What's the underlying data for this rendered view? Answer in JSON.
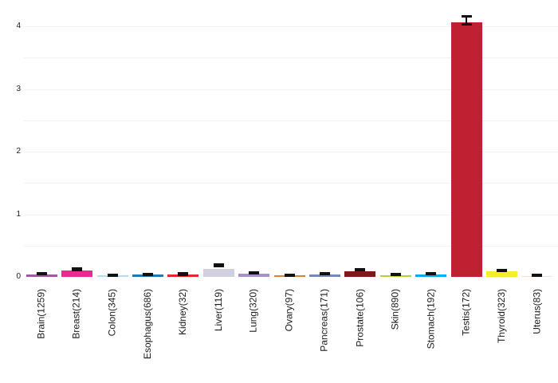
{
  "chart_data": {
    "type": "bar",
    "title": "",
    "xlabel": "",
    "ylabel": "",
    "categories": [
      "Brain(1259)",
      "Breast(214)",
      "Colon(345)",
      "Esophagus(686)",
      "Kidney(32)",
      "Liver(119)",
      "Lung(320)",
      "Ovary(97)",
      "Pancreas(171)",
      "Prostate(106)",
      "Skin(890)",
      "Stomach(192)",
      "Testis(172)",
      "Thyroid(323)",
      "Uterus(83)"
    ],
    "values": [
      0.04,
      0.1,
      0.02,
      0.035,
      0.04,
      0.13,
      0.055,
      0.02,
      0.035,
      0.095,
      0.028,
      0.04,
      4.07,
      0.085,
      0.018
    ],
    "error_low": [
      0.04,
      0.11,
      0.015,
      0.035,
      0.035,
      0.17,
      0.06,
      0.02,
      0.04,
      0.105,
      0.03,
      0.045,
      4.03,
      0.09,
      0.02
    ],
    "error_high": [
      0.06,
      0.14,
      0.035,
      0.05,
      0.06,
      0.2,
      0.08,
      0.04,
      0.055,
      0.13,
      0.05,
      0.065,
      4.16,
      0.115,
      0.04
    ],
    "bar_colors": [
      "#a4579e",
      "#ec2891",
      "#b0ddf1",
      "#2176b6",
      "#e8262b",
      "#d0d0e0",
      "#a890c8",
      "#e0812e",
      "#7689b6",
      "#7c1a1b",
      "#b0d23a",
      "#00aeef",
      "#bf2032",
      "#f8ee28",
      "#fbe4c9"
    ],
    "yticks": [
      "0",
      "1",
      "2",
      "3",
      "4"
    ],
    "ylim": [
      0,
      4.3
    ],
    "minor_grid_step": 0.5,
    "grid": true,
    "legend": "none",
    "error_bar_color": "#111111",
    "gridline_color": "#f2f2f2",
    "text_color": "#1a1a1a",
    "background_color": "#ffffff"
  }
}
